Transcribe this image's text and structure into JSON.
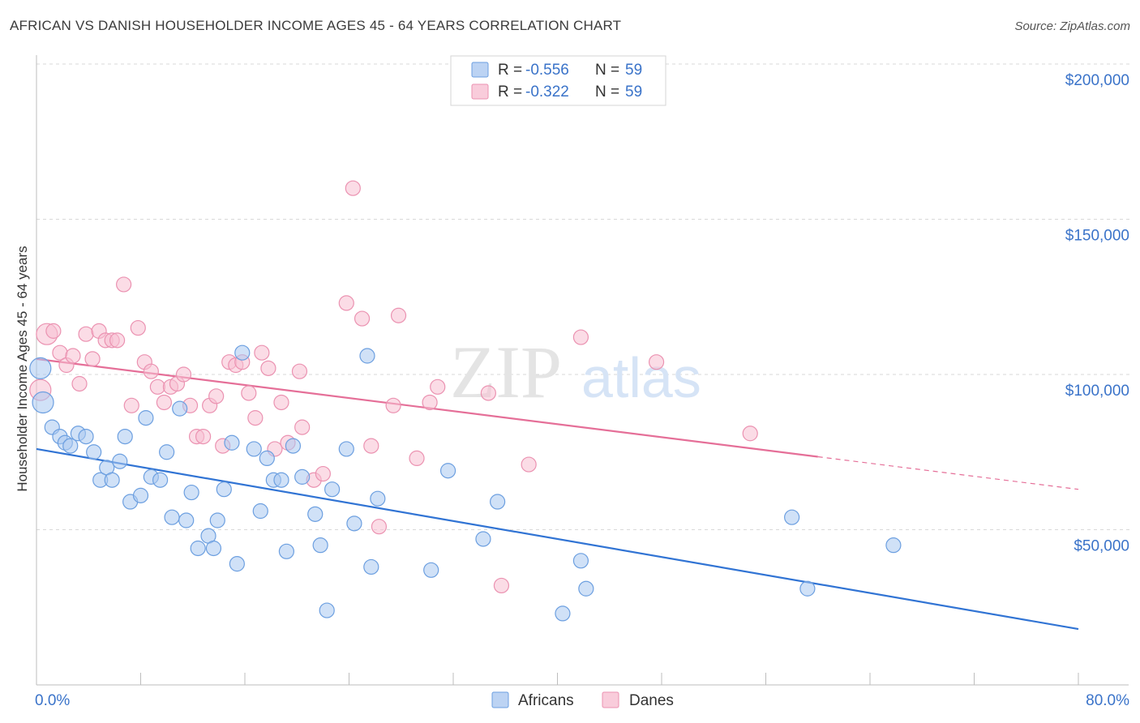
{
  "title": "AFRICAN VS DANISH HOUSEHOLDER INCOME AGES 45 - 64 YEARS CORRELATION CHART",
  "source": "Source: ZipAtlas.com",
  "watermark": {
    "zip": "ZIP",
    "atlas": "atlas"
  },
  "colors": {
    "africans_fill": "#a9c8f0",
    "africans_stroke": "#6c9fe0",
    "africans_line": "#3174d4",
    "danes_fill": "#f7bfd1",
    "danes_stroke": "#eb92b1",
    "danes_line": "#e56f98",
    "axis_text": "#3a73c9",
    "grid": "#d9d9d9"
  },
  "legend_box": {
    "rows": [
      {
        "r_label": "R =",
        "r_value": "-0.556",
        "n_label": "N =",
        "n_value": "59"
      },
      {
        "r_label": "R =",
        "r_value": "-0.322",
        "n_label": "N =",
        "n_value": "59"
      }
    ]
  },
  "chart_data": {
    "type": "scatter",
    "xlabel": "",
    "ylabel": "Householder Income Ages 45 - 64 years",
    "xlim": [
      0,
      80
    ],
    "ylim": [
      0,
      200000
    ],
    "x_tick_labels": [
      "0.0%",
      "80.0%"
    ],
    "y_ticks": [
      50000,
      100000,
      150000,
      200000
    ],
    "y_tick_labels": [
      "$50,000",
      "$100,000",
      "$150,000",
      "$200,000"
    ],
    "grid": true,
    "legend_position": "bottom-center",
    "series": [
      {
        "name": "Africans",
        "points": [
          [
            0.3,
            102000
          ],
          [
            0.5,
            91000
          ],
          [
            1.2,
            83000
          ],
          [
            1.8,
            80000
          ],
          [
            2.2,
            78000
          ],
          [
            2.6,
            77000
          ],
          [
            3.2,
            81000
          ],
          [
            3.8,
            80000
          ],
          [
            4.4,
            75000
          ],
          [
            4.9,
            66000
          ],
          [
            5.4,
            70000
          ],
          [
            5.8,
            66000
          ],
          [
            6.4,
            72000
          ],
          [
            6.8,
            80000
          ],
          [
            7.2,
            59000
          ],
          [
            8.0,
            61000
          ],
          [
            8.4,
            86000
          ],
          [
            8.8,
            67000
          ],
          [
            9.5,
            66000
          ],
          [
            10.0,
            75000
          ],
          [
            10.4,
            54000
          ],
          [
            11.0,
            89000
          ],
          [
            11.5,
            53000
          ],
          [
            11.9,
            62000
          ],
          [
            12.4,
            44000
          ],
          [
            13.2,
            48000
          ],
          [
            13.6,
            44000
          ],
          [
            13.9,
            53000
          ],
          [
            14.4,
            63000
          ],
          [
            15.0,
            78000
          ],
          [
            15.4,
            39000
          ],
          [
            15.8,
            107000
          ],
          [
            16.7,
            76000
          ],
          [
            17.2,
            56000
          ],
          [
            17.7,
            73000
          ],
          [
            18.2,
            66000
          ],
          [
            18.8,
            66000
          ],
          [
            19.2,
            43000
          ],
          [
            19.7,
            77000
          ],
          [
            20.4,
            67000
          ],
          [
            21.4,
            55000
          ],
          [
            21.8,
            45000
          ],
          [
            22.3,
            24000
          ],
          [
            22.7,
            63000
          ],
          [
            23.8,
            76000
          ],
          [
            24.4,
            52000
          ],
          [
            25.4,
            106000
          ],
          [
            25.7,
            38000
          ],
          [
            26.2,
            60000
          ],
          [
            30.3,
            37000
          ],
          [
            31.6,
            69000
          ],
          [
            34.3,
            47000
          ],
          [
            35.4,
            59000
          ],
          [
            40.4,
            23000
          ],
          [
            41.8,
            40000
          ],
          [
            42.2,
            31000
          ],
          [
            58.0,
            54000
          ],
          [
            59.2,
            31000
          ],
          [
            65.8,
            45000
          ]
        ],
        "trend": {
          "x": [
            0,
            80
          ],
          "y": [
            76000,
            18000
          ]
        }
      },
      {
        "name": "Danes",
        "points": [
          [
            0.3,
            95000
          ],
          [
            0.8,
            113000
          ],
          [
            1.3,
            114000
          ],
          [
            1.8,
            107000
          ],
          [
            2.3,
            103000
          ],
          [
            2.8,
            106000
          ],
          [
            3.3,
            97000
          ],
          [
            3.8,
            113000
          ],
          [
            4.3,
            105000
          ],
          [
            4.8,
            114000
          ],
          [
            5.3,
            111000
          ],
          [
            5.8,
            111000
          ],
          [
            6.2,
            111000
          ],
          [
            6.7,
            129000
          ],
          [
            7.3,
            90000
          ],
          [
            7.8,
            115000
          ],
          [
            8.3,
            104000
          ],
          [
            8.8,
            101000
          ],
          [
            9.3,
            96000
          ],
          [
            9.8,
            91000
          ],
          [
            10.3,
            96000
          ],
          [
            10.8,
            97000
          ],
          [
            11.3,
            100000
          ],
          [
            11.8,
            90000
          ],
          [
            12.3,
            80000
          ],
          [
            12.8,
            80000
          ],
          [
            13.3,
            90000
          ],
          [
            13.8,
            93000
          ],
          [
            14.3,
            77000
          ],
          [
            14.8,
            104000
          ],
          [
            15.3,
            103000
          ],
          [
            15.8,
            104000
          ],
          [
            16.3,
            94000
          ],
          [
            16.8,
            86000
          ],
          [
            17.3,
            107000
          ],
          [
            17.8,
            102000
          ],
          [
            18.3,
            76000
          ],
          [
            18.8,
            91000
          ],
          [
            19.3,
            78000
          ],
          [
            20.2,
            101000
          ],
          [
            20.4,
            83000
          ],
          [
            21.3,
            66000
          ],
          [
            22.0,
            68000
          ],
          [
            23.8,
            123000
          ],
          [
            24.3,
            160000
          ],
          [
            25.0,
            118000
          ],
          [
            25.7,
            77000
          ],
          [
            26.3,
            51000
          ],
          [
            27.4,
            90000
          ],
          [
            27.8,
            119000
          ],
          [
            29.2,
            73000
          ],
          [
            30.2,
            91000
          ],
          [
            30.8,
            96000
          ],
          [
            34.7,
            94000
          ],
          [
            35.7,
            32000
          ],
          [
            37.8,
            71000
          ],
          [
            41.8,
            112000
          ],
          [
            47.6,
            104000
          ],
          [
            54.8,
            81000
          ]
        ],
        "trend": {
          "x": [
            0,
            80
          ],
          "y": [
            105000,
            63000
          ]
        },
        "trend_solid_until_x": 60
      }
    ]
  }
}
